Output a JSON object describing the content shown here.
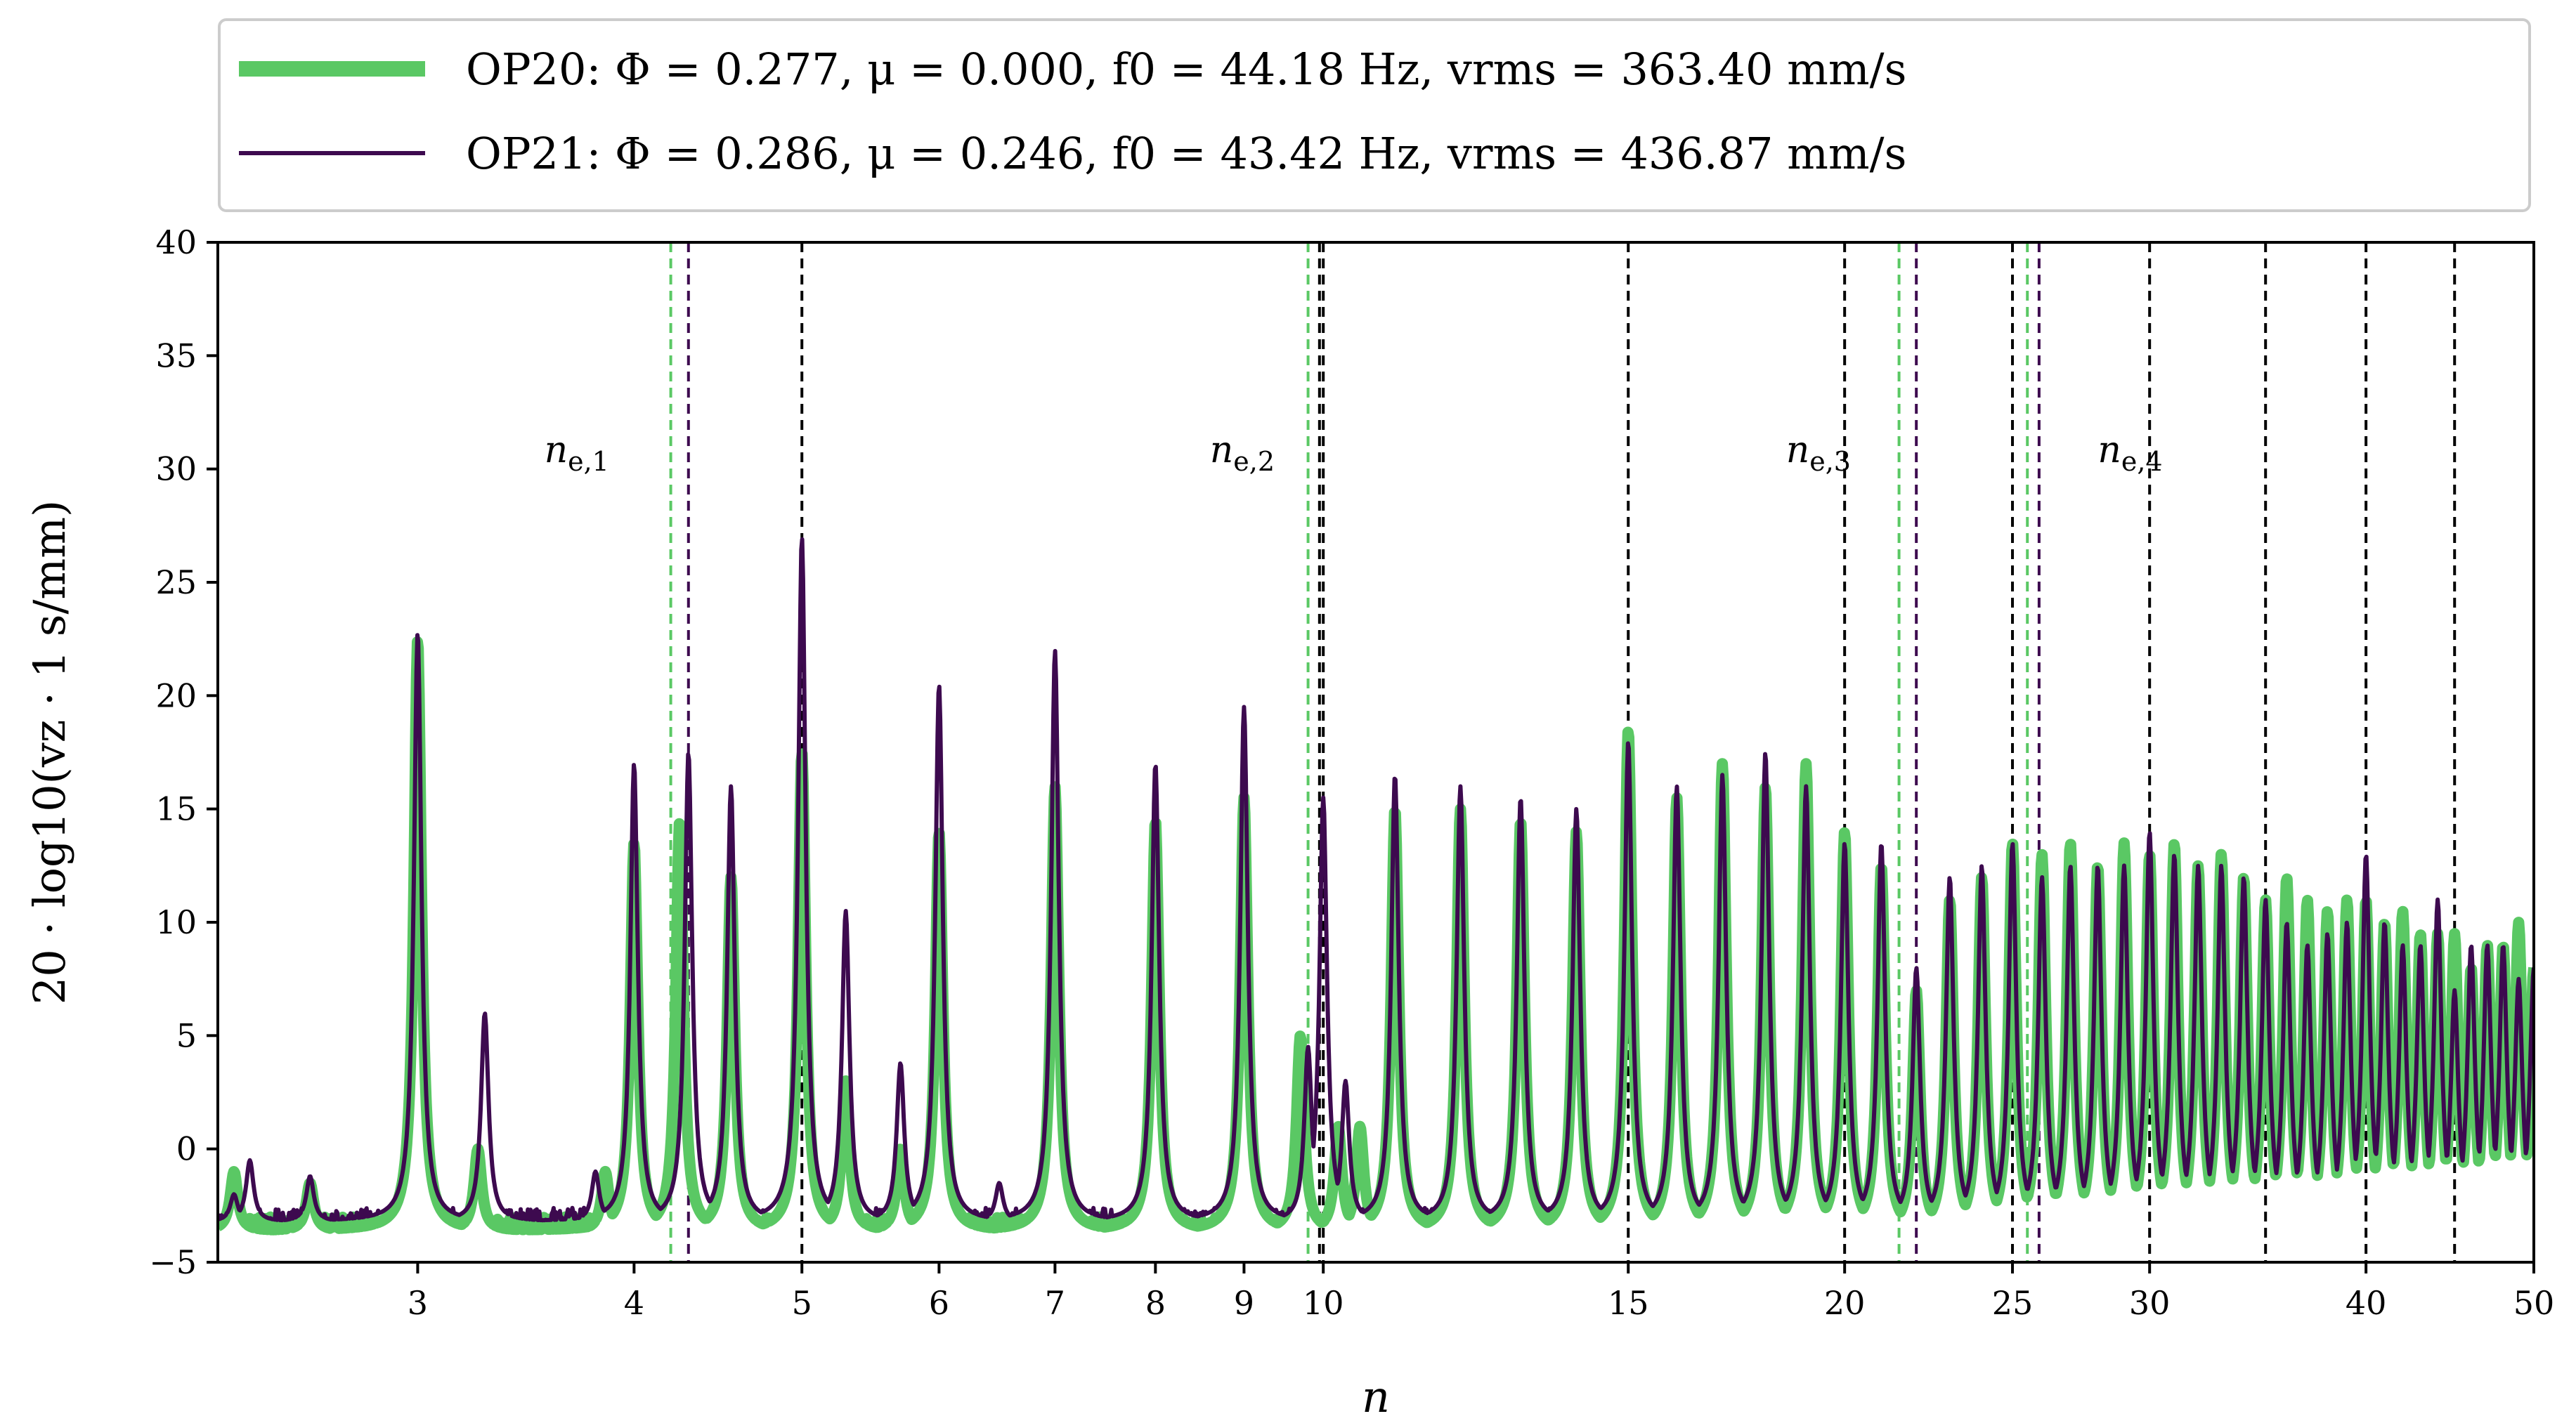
{
  "chart_data": {
    "type": "line",
    "title": "",
    "xlabel": "n",
    "ylabel": "20 · log10(vz · 1 s/mm)",
    "xscale": "log",
    "xlim": [
      2.3,
      50
    ],
    "ylim": [
      -5,
      40
    ],
    "yticks": [
      -5,
      0,
      5,
      10,
      15,
      20,
      25,
      30,
      35,
      40
    ],
    "xticks": [
      3,
      4,
      5,
      6,
      7,
      8,
      9,
      10,
      15,
      20,
      25,
      30,
      40,
      50
    ],
    "legend_position": "top",
    "series": [
      {
        "name": "OP20",
        "label": "OP20:  Φ = 0.277,  μ = 0.000,  f0 = 44.18 Hz,  vrms = 363.40 mm/s",
        "color": "#5ac864",
        "style": "thick",
        "phi": 0.277,
        "mu": 0.0,
        "f0_Hz": 44.18,
        "vrms_mm_s": 363.4,
        "baseline": -3.6,
        "peaks": [
          [
            2.35,
            -1
          ],
          [
            2.6,
            -1.5
          ],
          [
            3.0,
            22.5
          ],
          [
            3.25,
            0
          ],
          [
            3.85,
            -1
          ],
          [
            4.0,
            13.5
          ],
          [
            4.25,
            14.5
          ],
          [
            4.55,
            12
          ],
          [
            5.0,
            17.5
          ],
          [
            5.3,
            3
          ],
          [
            5.7,
            0
          ],
          [
            6.0,
            14
          ],
          [
            7.0,
            16
          ],
          [
            8.0,
            14.5
          ],
          [
            9.0,
            15.5
          ],
          [
            9.7,
            5
          ],
          [
            10.2,
            1
          ],
          [
            10.5,
            1
          ],
          [
            11.0,
            15
          ],
          [
            12.0,
            15
          ],
          [
            13.0,
            14.5
          ],
          [
            14.0,
            14
          ],
          [
            15.0,
            18.5
          ],
          [
            16.0,
            15.5
          ],
          [
            17.0,
            17
          ],
          [
            18.0,
            16
          ],
          [
            19.0,
            17
          ],
          [
            20.0,
            14
          ],
          [
            21.0,
            12.5
          ],
          [
            22.0,
            7
          ],
          [
            23.0,
            11
          ],
          [
            24.0,
            12
          ],
          [
            25.0,
            13.5
          ],
          [
            26.0,
            13
          ],
          [
            27.0,
            13.5
          ],
          [
            28.0,
            12.5
          ],
          [
            29.0,
            13.5
          ],
          [
            30.0,
            13
          ],
          [
            31.0,
            13.5
          ],
          [
            32.0,
            12.5
          ],
          [
            33.0,
            13
          ],
          [
            34.0,
            12
          ],
          [
            35.0,
            11
          ],
          [
            36.0,
            12
          ],
          [
            37.0,
            11
          ],
          [
            38.0,
            10.5
          ],
          [
            39.0,
            11
          ],
          [
            40.0,
            11
          ],
          [
            41.0,
            10
          ],
          [
            42.0,
            10.5
          ],
          [
            43.0,
            9.5
          ],
          [
            44.0,
            9.5
          ],
          [
            45.0,
            9.5
          ],
          [
            46.0,
            8
          ],
          [
            47.0,
            9
          ],
          [
            48.0,
            9
          ],
          [
            49.0,
            10
          ],
          [
            50.0,
            8
          ]
        ]
      },
      {
        "name": "OP21",
        "label": "OP21:  Φ = 0.286,  μ = 0.246,  f0 = 43.42 Hz,  vrms = 436.87 mm/s",
        "color": "#3d0a4f",
        "style": "thin",
        "phi": 0.286,
        "mu": 0.246,
        "f0_Hz": 43.42,
        "vrms_mm_s": 436.87,
        "baseline": -3.2,
        "peaks": [
          [
            2.35,
            -2
          ],
          [
            2.4,
            -0.5
          ],
          [
            2.6,
            -1.2
          ],
          [
            3.0,
            22.8
          ],
          [
            3.28,
            6
          ],
          [
            3.8,
            -1
          ],
          [
            4.0,
            17
          ],
          [
            4.3,
            17.5
          ],
          [
            4.55,
            16
          ],
          [
            5.0,
            27
          ],
          [
            5.3,
            10.5
          ],
          [
            5.7,
            3.8
          ],
          [
            6.0,
            20.5
          ],
          [
            6.5,
            -1.5
          ],
          [
            7.0,
            22
          ],
          [
            8.0,
            17
          ],
          [
            9.0,
            19.5
          ],
          [
            9.8,
            4.5
          ],
          [
            10.0,
            15.5
          ],
          [
            10.3,
            3
          ],
          [
            11.0,
            16.5
          ],
          [
            12.0,
            16
          ],
          [
            13.0,
            15.5
          ],
          [
            14.0,
            15
          ],
          [
            15.0,
            18
          ],
          [
            16.0,
            16
          ],
          [
            17.0,
            16.5
          ],
          [
            18.0,
            17.5
          ],
          [
            19.0,
            16
          ],
          [
            20.0,
            13.5
          ],
          [
            21.0,
            13.5
          ],
          [
            22.0,
            8
          ],
          [
            23.0,
            12
          ],
          [
            24.0,
            12.5
          ],
          [
            25.0,
            13.5
          ],
          [
            26.0,
            12
          ],
          [
            27.0,
            12.5
          ],
          [
            28.0,
            12.5
          ],
          [
            29.0,
            12.5
          ],
          [
            30.0,
            14
          ],
          [
            31.0,
            13
          ],
          [
            32.0,
            12.5
          ],
          [
            33.0,
            12.5
          ],
          [
            34.0,
            12
          ],
          [
            35.0,
            11
          ],
          [
            36.0,
            10
          ],
          [
            37.0,
            9
          ],
          [
            38.0,
            9.5
          ],
          [
            39.0,
            10
          ],
          [
            40.0,
            13
          ],
          [
            41.0,
            10
          ],
          [
            42.0,
            9
          ],
          [
            43.0,
            9
          ],
          [
            44.0,
            11
          ],
          [
            45.0,
            7
          ],
          [
            46.0,
            9
          ],
          [
            47.0,
            9
          ],
          [
            48.0,
            9
          ],
          [
            49.0,
            7.5
          ],
          [
            50.0,
            8
          ]
        ]
      }
    ],
    "vlines": [
      {
        "n": 4.2,
        "color": "#5ac864"
      },
      {
        "n": 4.3,
        "color": "#3d0a4f"
      },
      {
        "n": 5.0,
        "color": "#000000"
      },
      {
        "n": 9.8,
        "color": "#5ac864"
      },
      {
        "n": 9.95,
        "color": "#000000"
      },
      {
        "n": 10.0,
        "color": "#000000"
      },
      {
        "n": 15.0,
        "color": "#000000"
      },
      {
        "n": 20.0,
        "color": "#000000"
      },
      {
        "n": 21.5,
        "color": "#5ac864"
      },
      {
        "n": 22.0,
        "color": "#3d0a4f"
      },
      {
        "n": 25.0,
        "color": "#000000"
      },
      {
        "n": 25.5,
        "color": "#5ac864"
      },
      {
        "n": 25.9,
        "color": "#3d0a4f"
      },
      {
        "n": 30.0,
        "color": "#000000"
      },
      {
        "n": 35.0,
        "color": "#000000"
      },
      {
        "n": 40.0,
        "color": "#000000"
      },
      {
        "n": 45.0,
        "color": "#000000"
      }
    ],
    "annotations": [
      {
        "n": 3.55,
        "y": 30.3,
        "base": "n",
        "sub": "e,1"
      },
      {
        "n": 8.6,
        "y": 30.3,
        "base": "n",
        "sub": "e,2"
      },
      {
        "n": 18.5,
        "y": 30.3,
        "base": "n",
        "sub": "e,3"
      },
      {
        "n": 28.0,
        "y": 30.3,
        "base": "n",
        "sub": "e,4"
      }
    ]
  }
}
